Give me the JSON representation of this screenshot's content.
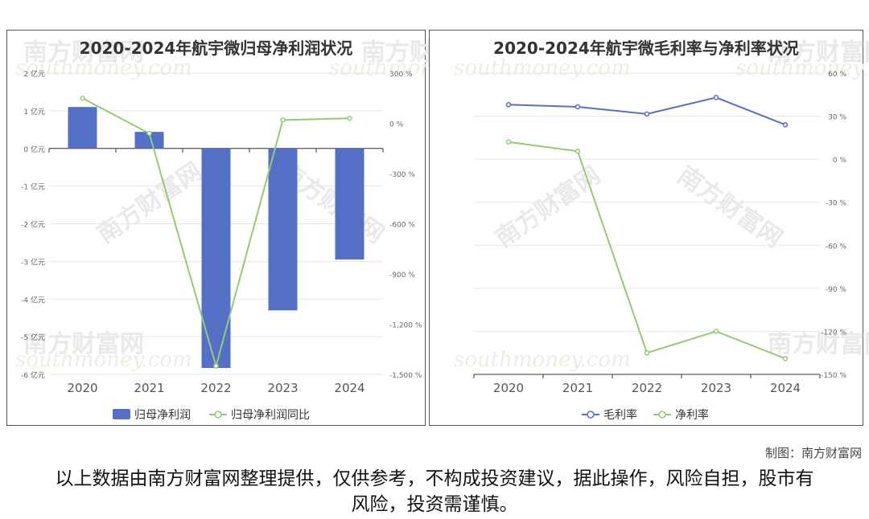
{
  "credit": "制图：南方财富网",
  "disclaimer": "以上数据由南方财富网整理提供，仅供参考，不构成投资建议，据此操作，风险自担，股市有风险，投资需谨慎。",
  "watermark": {
    "text": "南方财富网",
    "sub": "southmoney.com"
  },
  "colors": {
    "bar": "#5470c6",
    "line_green": "#91cc75",
    "line_blue": "#5470c6",
    "grid": "#e6e6e6",
    "axis": "#333333"
  },
  "chart_data": [
    {
      "type": "bar",
      "title": "2020-2024年航宇微归母净利润状况",
      "categories": [
        "2020",
        "2021",
        "2022",
        "2023",
        "2024"
      ],
      "series": [
        {
          "name": "归母净利润",
          "type": "bar",
          "axis": "left",
          "values": [
            1.1,
            0.44,
            -5.83,
            -4.3,
            -2.95
          ]
        },
        {
          "name": "归母净利润同比",
          "type": "line",
          "axis": "right",
          "values": [
            150,
            -60,
            -1450,
            20,
            30
          ]
        }
      ],
      "left_axis": {
        "ylim": [
          -6,
          2
        ],
        "ticks": [
          2,
          1,
          0,
          -1,
          -2,
          -3,
          -4,
          -5,
          -6
        ],
        "tick_labels": [
          "2 亿元",
          "1 亿元",
          "0 亿元",
          "-1 亿元",
          "-2 亿元",
          "-3 亿元",
          "-4 亿元",
          "-5 亿元",
          "-6 亿元"
        ]
      },
      "right_axis": {
        "ylim": [
          -1500,
          300
        ],
        "ticks": [
          300,
          0,
          -300,
          -600,
          -900,
          -1200,
          -1500
        ],
        "tick_labels": [
          "300 %",
          "0 %",
          "-300 %",
          "-600 %",
          "-900 %",
          "-1,200 %",
          "-1,500 %"
        ]
      },
      "legend": {
        "placement": "bottom",
        "entries": [
          "归母净利润",
          "归母净利润同比"
        ]
      },
      "grid": true
    },
    {
      "type": "line",
      "title": "2020-2024年航宇微毛利率与净利率状况",
      "categories": [
        "2020",
        "2021",
        "2022",
        "2023",
        "2024"
      ],
      "series": [
        {
          "name": "毛利率",
          "values": [
            38,
            36.5,
            31.5,
            43,
            24
          ]
        },
        {
          "name": "净利率",
          "values": [
            12,
            5.5,
            -135,
            -120,
            -139
          ]
        }
      ],
      "right_axis": {
        "ylim": [
          -150,
          60
        ],
        "ticks": [
          60,
          30,
          0,
          -30,
          -60,
          -90,
          -120,
          -150
        ],
        "tick_labels": [
          "60 %",
          "30 %",
          "0 %",
          "-30 %",
          "-60 %",
          "-90 %",
          "-120 %",
          "-150 %"
        ]
      },
      "legend": {
        "placement": "bottom",
        "entries": [
          "毛利率",
          "净利率"
        ]
      },
      "grid": true
    }
  ]
}
